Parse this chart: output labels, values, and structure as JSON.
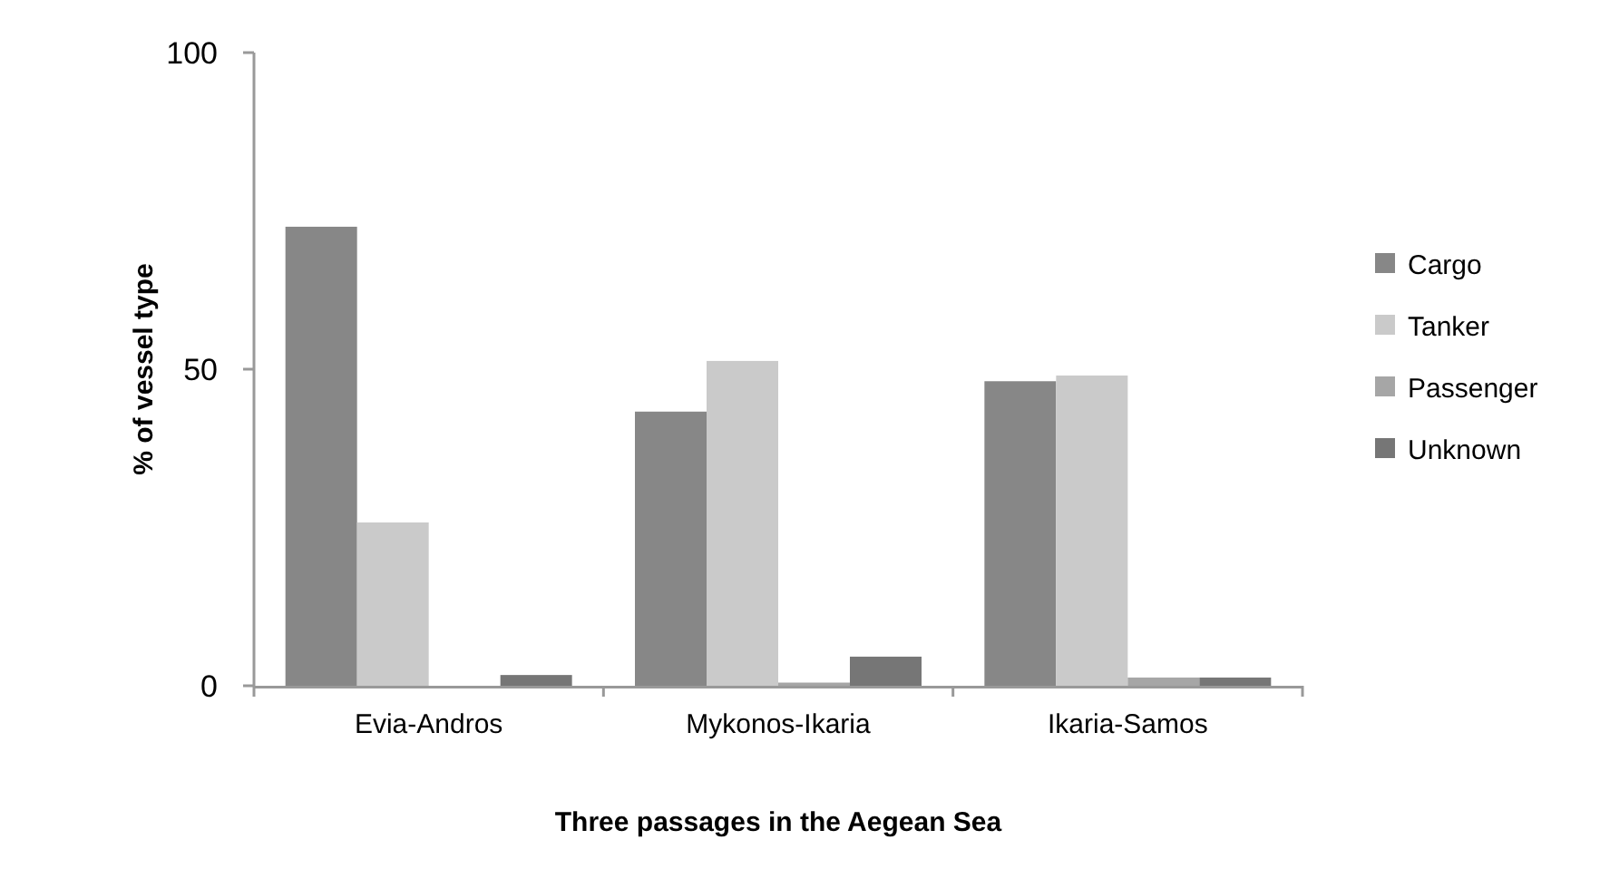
{
  "chart_data": {
    "type": "bar",
    "xlabel": "Three passages in the Aegean Sea",
    "ylabel": "% of vessel type",
    "categories": [
      "Evia-Andros",
      "Mykonos-Ikaria",
      "Ikaria-Samos"
    ],
    "series": [
      {
        "name": "Cargo",
        "color": "#878787",
        "values": [
          72.5,
          43.3,
          48.1
        ]
      },
      {
        "name": "Tanker",
        "color": "#cacaca",
        "values": [
          25.8,
          51.3,
          49.0
        ]
      },
      {
        "name": "Passenger",
        "color": "#a6a6a6",
        "values": [
          0,
          0.5,
          1.3
        ]
      },
      {
        "name": "Unknown",
        "color": "#767676",
        "values": [
          1.7,
          4.6,
          1.3
        ]
      }
    ],
    "ylim": [
      0,
      100
    ],
    "yticks": [
      0,
      50,
      100
    ],
    "grid": false,
    "legend": "right"
  }
}
